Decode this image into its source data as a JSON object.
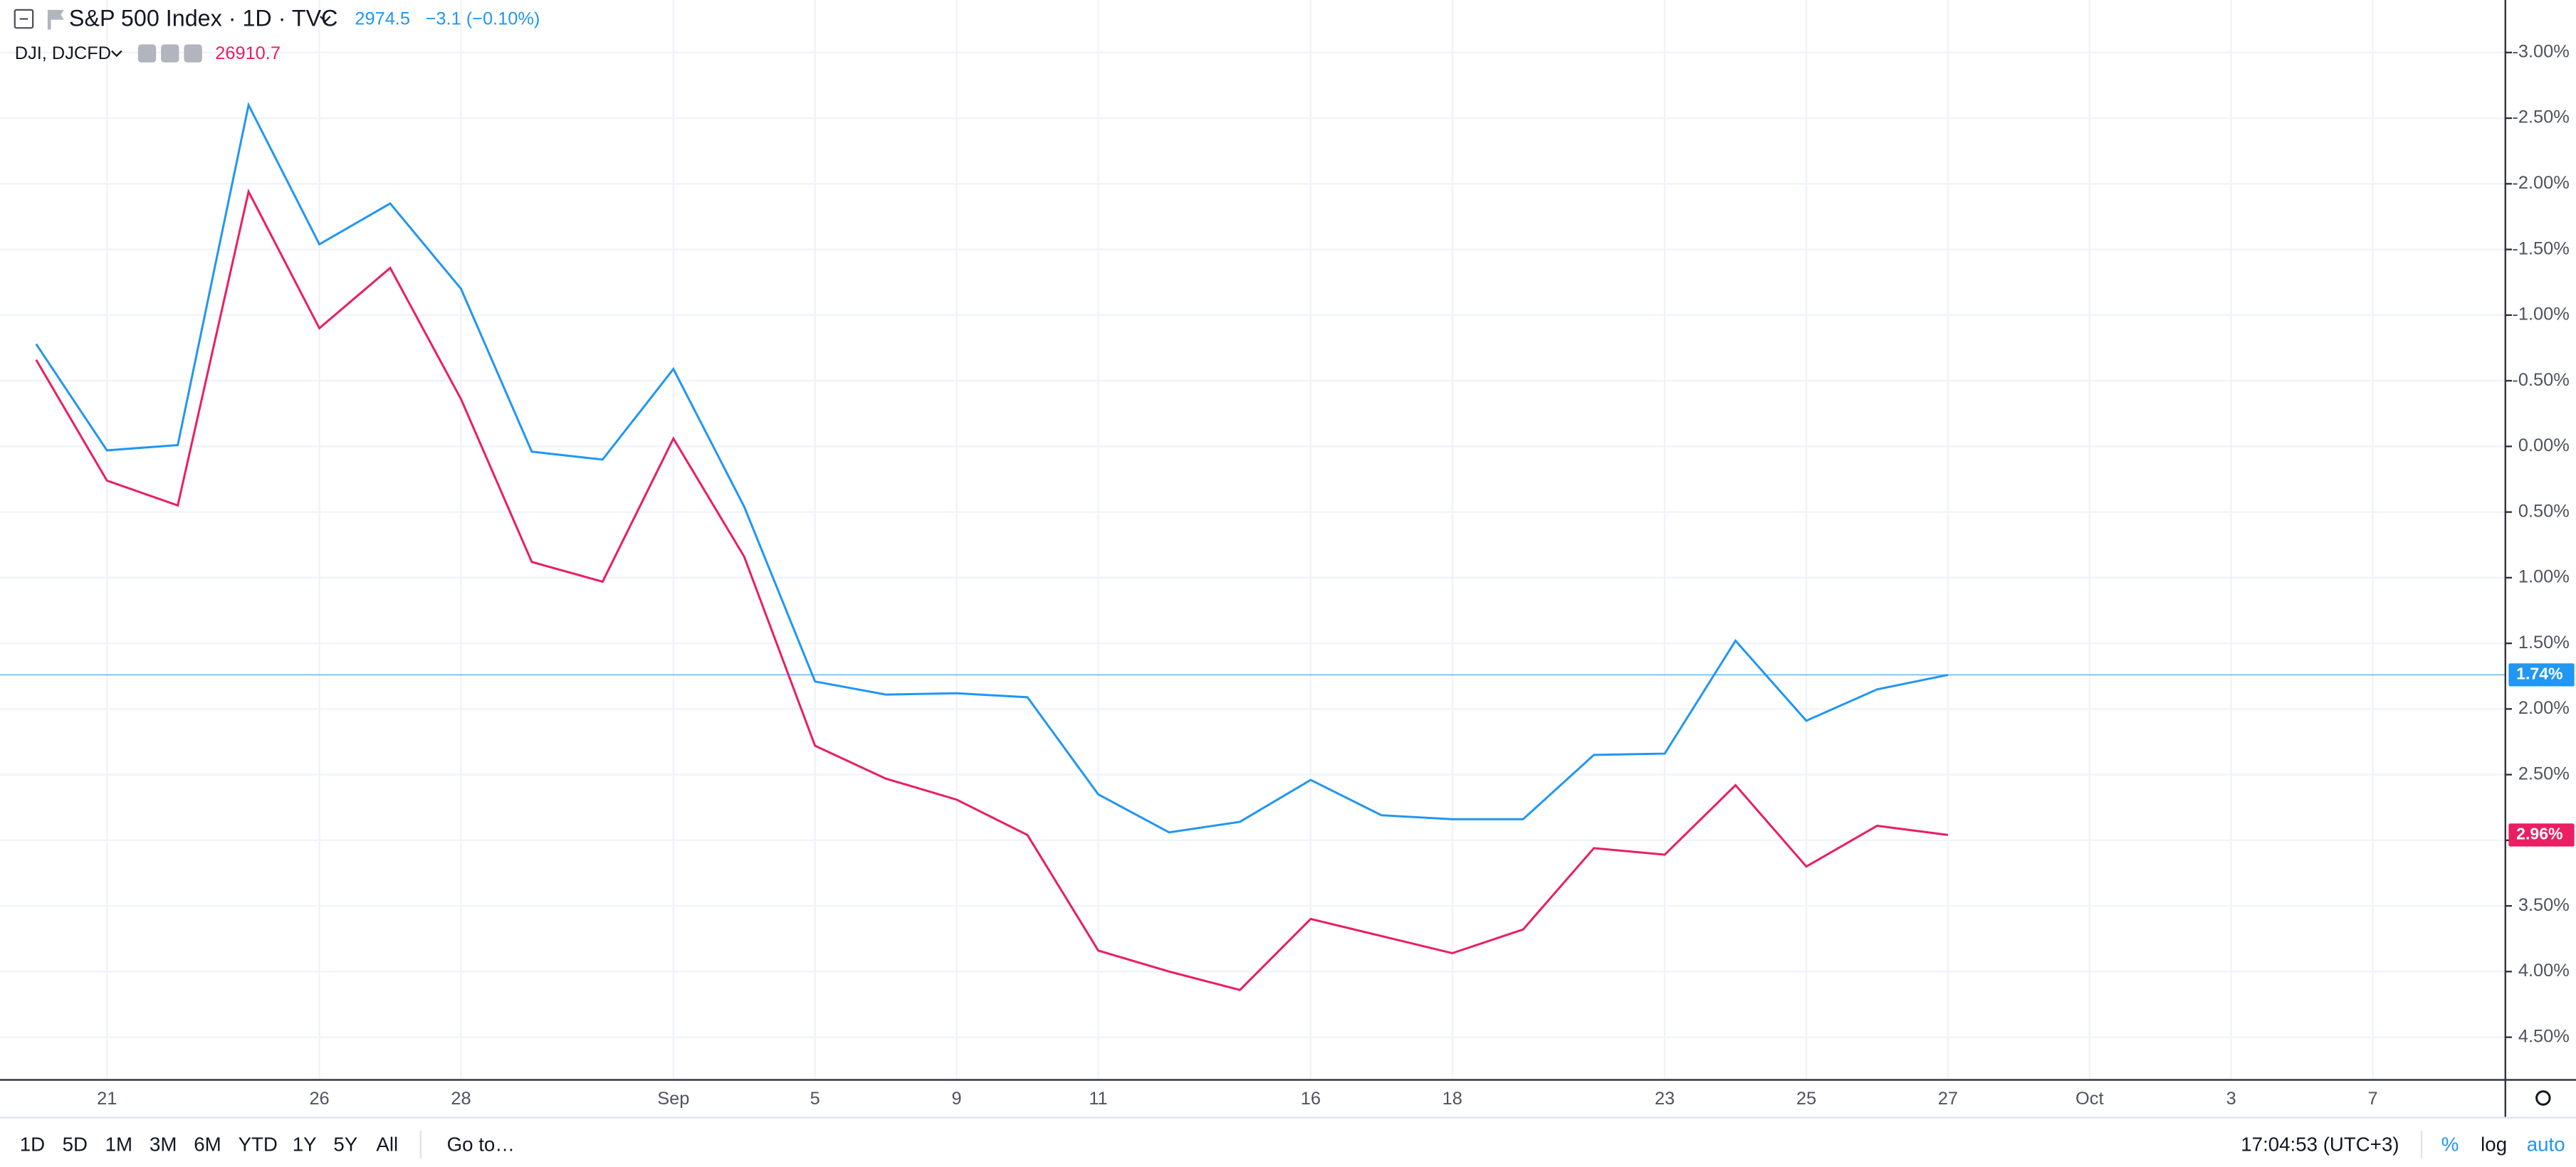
{
  "header": {
    "title": "S&P 500 Index · 1D · TVC",
    "last": "2974.5",
    "change": "−3.1 (−0.10%)",
    "compare": "DJI, DJCFD",
    "compare_last": "26910.7"
  },
  "toolbar": {
    "ranges": [
      "1D",
      "5D",
      "1M",
      "3M",
      "6M",
      "YTD",
      "1Y",
      "5Y",
      "All"
    ],
    "goto": "Go to…",
    "time": "17:04:53 (UTC+3)",
    "percent": "%",
    "log": "log",
    "auto": "auto"
  },
  "chart_data": {
    "type": "line",
    "categories": [
      null,
      "21",
      null,
      null,
      "26",
      null,
      "28",
      null,
      null,
      "Sep",
      null,
      "5",
      null,
      "9",
      null,
      "11",
      null,
      null,
      "16",
      null,
      "18",
      null,
      null,
      "23",
      null,
      "25",
      null,
      "27",
      null,
      "Oct",
      null,
      "3",
      null,
      "7",
      null
    ],
    "series": [
      {
        "name": "S&P 500 Index",
        "color": "#2196f3",
        "values": [
          -0.78,
          0.03,
          -0.01,
          -2.6,
          -1.54,
          -1.85,
          -1.2,
          0.04,
          0.1,
          -0.59,
          0.46,
          1.79,
          1.89,
          1.88,
          1.91,
          2.65,
          2.94,
          2.86,
          2.54,
          2.81,
          2.84,
          2.84,
          2.35,
          2.34,
          1.48,
          2.09,
          1.85,
          1.74,
          null,
          null,
          null,
          null,
          null,
          null,
          null
        ],
        "value_labels": [
          null,
          null,
          null,
          null,
          null,
          null,
          null,
          null,
          null,
          null,
          null,
          null,
          null,
          null,
          null,
          null,
          null,
          null,
          null,
          null,
          null,
          null,
          null,
          null,
          null,
          null,
          null,
          "1.74%",
          null,
          null,
          null,
          null,
          null,
          null,
          null
        ]
      },
      {
        "name": "DJI",
        "color": "#e91e63",
        "values": [
          -0.66,
          0.26,
          0.45,
          -1.94,
          -0.9,
          -1.36,
          -0.36,
          0.88,
          1.03,
          -0.06,
          0.84,
          2.28,
          2.53,
          2.69,
          2.96,
          3.84,
          4.0,
          4.14,
          3.6,
          3.73,
          3.86,
          3.68,
          3.06,
          3.11,
          2.58,
          3.2,
          2.89,
          2.96,
          null,
          null,
          null,
          null,
          null,
          null,
          null
        ],
        "value_labels": [
          null,
          null,
          null,
          null,
          null,
          null,
          null,
          null,
          null,
          null,
          null,
          null,
          null,
          null,
          null,
          null,
          null,
          null,
          null,
          null,
          null,
          null,
          null,
          null,
          null,
          null,
          null,
          "2.96%",
          null,
          null,
          null,
          null,
          null,
          null,
          null
        ]
      }
    ],
    "ylim": [
      -3.4,
      4.825
    ],
    "yticks": [
      {
        "value": -3,
        "label": "-3.00%"
      },
      {
        "value": -2.5,
        "label": "-2.50%"
      },
      {
        "value": -2,
        "label": "-2.00%"
      },
      {
        "value": -1.5,
        "label": "-1.50%"
      },
      {
        "value": -1,
        "label": "-1.00%"
      },
      {
        "value": -0.5,
        "label": "-0.50%"
      },
      {
        "value": 0,
        "label": "0.00%"
      },
      {
        "value": 0.5,
        "label": "0.50%"
      },
      {
        "value": 1,
        "label": "1.00%"
      },
      {
        "value": 1.5,
        "label": "1.50%"
      },
      {
        "value": 2,
        "label": "2.00%"
      },
      {
        "value": 2.5,
        "label": "2.50%"
      },
      {
        "value": 3,
        "label": "3.00%"
      },
      {
        "value": 3.5,
        "label": "3.50%"
      },
      {
        "value": 4,
        "label": "4.00%"
      },
      {
        "value": 4.5,
        "label": "4.50%"
      }
    ],
    "grid": true
  }
}
